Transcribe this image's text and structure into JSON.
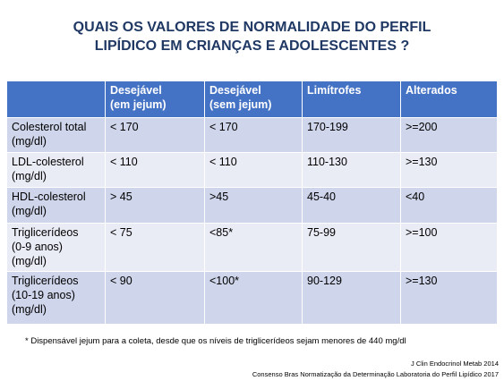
{
  "title": [
    "QUAIS OS VALORES  DE NORMALIDADE DO PERFIL",
    "LIPÍDICO EM CRIANÇAS E ADOLESCENTES ?"
  ],
  "table": {
    "header": [
      [
        ""
      ],
      [
        "Desejável",
        "(em jejum)"
      ],
      [
        "Desejável",
        "(sem jejum)"
      ],
      [
        "Limítrofes"
      ],
      [
        "Alterados"
      ]
    ],
    "rows": [
      [
        [
          "Colesterol total",
          "(mg/dl)"
        ],
        [
          "< 170"
        ],
        [
          "< 170"
        ],
        [
          "170-199"
        ],
        [
          ">=200"
        ]
      ],
      [
        [
          "LDL-colesterol",
          "(mg/dl)"
        ],
        [
          "< 110"
        ],
        [
          "< 110"
        ],
        [
          "110-130"
        ],
        [
          ">=130"
        ]
      ],
      [
        [
          "HDL-colesterol",
          "(mg/dl)"
        ],
        [
          "> 45"
        ],
        [
          ">45"
        ],
        [
          "45-40"
        ],
        [
          "<40"
        ]
      ],
      [
        [
          "Triglicerídeos",
          "(0-9 anos)",
          "(mg/dl)"
        ],
        [
          "< 75"
        ],
        [
          "<85*"
        ],
        [
          "75-99"
        ],
        [
          ">=100"
        ]
      ],
      [
        [
          "Triglicerídeos",
          "(10-19 anos)",
          "(mg/dl)"
        ],
        [
          "<  90"
        ],
        [
          "<100*"
        ],
        [
          "90-129"
        ],
        [
          ">=130"
        ]
      ]
    ]
  },
  "footnote": "* Dispensável jejum para a coleta, desde que os níveis de triglicerídeos sejam menores de 440 mg/dl",
  "references": [
    "J Clin Endocrinol Metab 2014",
    "Consenso Bras Normatização da Determinação Laboratoria do Perfil Lipídico 2017"
  ]
}
